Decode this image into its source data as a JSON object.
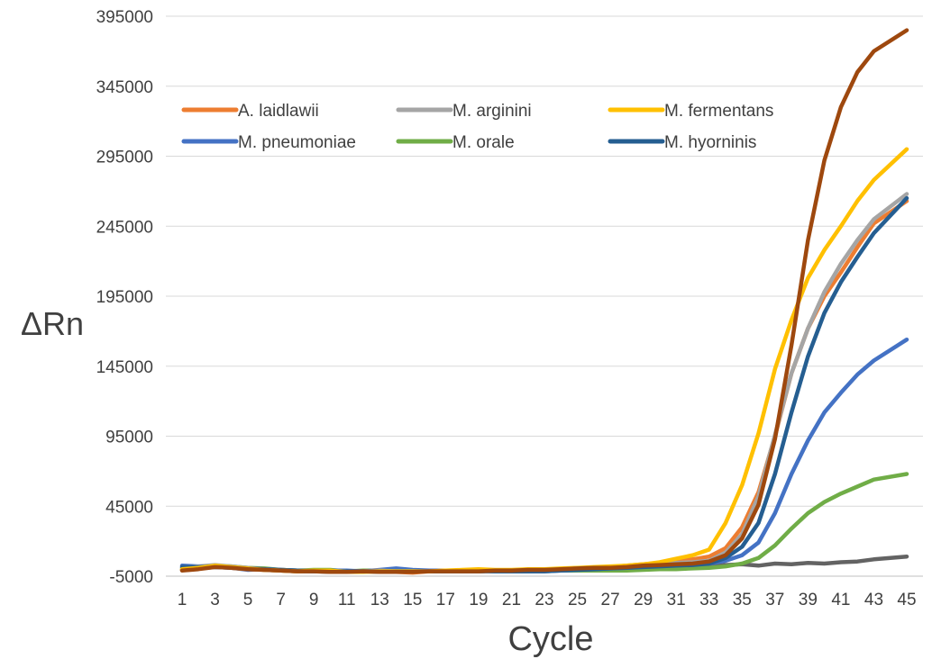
{
  "chart_data": {
    "type": "line",
    "title": "",
    "xlabel": "Cycle",
    "ylabel": "ΔRn",
    "ylim": [
      -5000,
      395000
    ],
    "yticks": [
      -5000,
      45000,
      95000,
      145000,
      195000,
      245000,
      295000,
      345000,
      395000
    ],
    "xticks": [
      1,
      3,
      5,
      7,
      9,
      11,
      13,
      15,
      17,
      19,
      21,
      23,
      25,
      27,
      29,
      31,
      33,
      35,
      37,
      39,
      41,
      43,
      45
    ],
    "ytick_labels": [
      "-5000",
      "45000",
      "95000",
      "145000",
      "195000",
      "245000",
      "295000",
      "345000",
      "395000"
    ],
    "xtick_labels": [
      "1",
      "3",
      "5",
      "7",
      "9",
      "11",
      "13",
      "15",
      "17",
      "19",
      "21",
      "23",
      "25",
      "27",
      "29",
      "31",
      "33",
      "35",
      "37",
      "39",
      "41",
      "43",
      "45"
    ],
    "grid": "horizontal",
    "legend_position": "top-left inside",
    "x": [
      1,
      2,
      3,
      4,
      5,
      6,
      7,
      8,
      9,
      10,
      11,
      12,
      13,
      14,
      15,
      16,
      17,
      18,
      19,
      20,
      21,
      22,
      23,
      24,
      25,
      26,
      27,
      28,
      29,
      30,
      31,
      32,
      33,
      34,
      35,
      36,
      37,
      38,
      39,
      40,
      41,
      42,
      43,
      45
    ],
    "series": [
      {
        "name": "A. laidlawii",
        "color": "#ED7D31",
        "legend": true,
        "values": [
          -500,
          1000,
          2500,
          1000,
          0,
          -500,
          -1000,
          -1500,
          -1000,
          -1500,
          -2000,
          -1500,
          -1000,
          -2000,
          -2500,
          -1500,
          -1000,
          -1500,
          -1000,
          -1000,
          -1500,
          -500,
          -500,
          0,
          500,
          1000,
          1500,
          2500,
          3500,
          4500,
          6000,
          7000,
          9000,
          15000,
          30000,
          55000,
          95000,
          140000,
          172000,
          195000,
          212000,
          230000,
          247000,
          263000
        ]
      },
      {
        "name": "M. arginini",
        "color": "#A5A5A5",
        "legend": true,
        "values": [
          1000,
          2000,
          3000,
          2000,
          1000,
          0,
          -500,
          -1000,
          -1000,
          -1500,
          -1500,
          -1500,
          -1000,
          -1500,
          -1500,
          -1500,
          -1500,
          -1500,
          -1000,
          -1000,
          -1000,
          -1000,
          -500,
          0,
          500,
          1000,
          1500,
          2000,
          3000,
          3500,
          4500,
          5000,
          6000,
          12000,
          25000,
          52000,
          96000,
          140000,
          172000,
          198000,
          218000,
          235000,
          250000,
          268000
        ]
      },
      {
        "name": "M. fermentans",
        "color": "#FFC000",
        "legend": true,
        "values": [
          0,
          1000,
          2500,
          1500,
          500,
          -500,
          -1000,
          -1500,
          -1000,
          -1000,
          -2000,
          -2000,
          -1500,
          -1500,
          -1500,
          -1500,
          -1000,
          -500,
          0,
          -500,
          -500,
          0,
          0,
          500,
          1000,
          1500,
          2000,
          2500,
          3500,
          5000,
          7500,
          10000,
          14000,
          33000,
          60000,
          97000,
          143000,
          178000,
          208000,
          228000,
          245000,
          263000,
          278000,
          300000
        ]
      },
      {
        "name": "M. pneumoniae",
        "color": "#4472C4",
        "legend": true,
        "values": [
          2500,
          2000,
          1500,
          1000,
          -500,
          0,
          -500,
          -1000,
          -1500,
          -1000,
          -1000,
          -1500,
          -500,
          500,
          -500,
          -1000,
          -1000,
          -1500,
          -1500,
          -1000,
          -1500,
          -1500,
          -1500,
          -1000,
          -500,
          0,
          500,
          1000,
          2000,
          2500,
          3000,
          3500,
          4000,
          6000,
          10000,
          19000,
          40000,
          68000,
          92000,
          112000,
          126000,
          139000,
          149000,
          164000
        ]
      },
      {
        "name": "M. orale",
        "color": "#70AD47",
        "legend": true,
        "values": [
          0,
          1500,
          2500,
          2000,
          1000,
          500,
          -500,
          -1000,
          -500,
          -500,
          -1500,
          -1000,
          -1000,
          -1500,
          -1500,
          -1500,
          -1500,
          -1000,
          -1500,
          -1000,
          -1500,
          -1500,
          -1000,
          -1000,
          -1000,
          -1000,
          -1000,
          -1000,
          -500,
          0,
          0,
          500,
          1000,
          2000,
          4000,
          8000,
          17000,
          29000,
          40000,
          48000,
          54000,
          59000,
          64000,
          68000
        ]
      },
      {
        "name": "M. hyorninis",
        "color": "#255E91",
        "legend": true,
        "values": [
          1500,
          1500,
          2000,
          1000,
          500,
          0,
          -500,
          -1000,
          -1500,
          -1500,
          -1500,
          -1500,
          -1500,
          -1500,
          -1500,
          -1500,
          -1500,
          -1500,
          -1500,
          -1500,
          -1500,
          -1500,
          -1500,
          -1000,
          -500,
          0,
          500,
          1000,
          1500,
          2000,
          2500,
          3000,
          4000,
          8000,
          16000,
          33000,
          68000,
          112000,
          152000,
          183000,
          205000,
          223000,
          240000,
          265000
        ]
      },
      {
        "name": "",
        "color": "#9E480E",
        "legend": false,
        "values": [
          -1000,
          0,
          1500,
          1000,
          0,
          -500,
          -1000,
          -1500,
          -1500,
          -2000,
          -2000,
          -1500,
          -2000,
          -2000,
          -2000,
          -1500,
          -1500,
          -1500,
          -1500,
          -1000,
          -1000,
          -500,
          -500,
          0,
          500,
          1000,
          1000,
          1500,
          2500,
          3000,
          3500,
          4000,
          5500,
          10000,
          22000,
          46000,
          93000,
          160000,
          235000,
          292000,
          330000,
          355000,
          370000,
          385000
        ]
      },
      {
        "name": "",
        "color": "#636363",
        "legend": false,
        "values": [
          -500,
          500,
          1500,
          1000,
          500,
          -500,
          -1000,
          -1500,
          -1500,
          -2000,
          -1500,
          -1500,
          -2000,
          -1500,
          -1500,
          -1000,
          -1000,
          -1000,
          -1000,
          -1500,
          -1500,
          -1000,
          -1000,
          -1000,
          -500,
          -500,
          0,
          500,
          1000,
          1500,
          1500,
          2000,
          2000,
          3000,
          3500,
          2500,
          4000,
          3500,
          4500,
          4000,
          5000,
          5500,
          7000,
          9000
        ]
      }
    ]
  }
}
